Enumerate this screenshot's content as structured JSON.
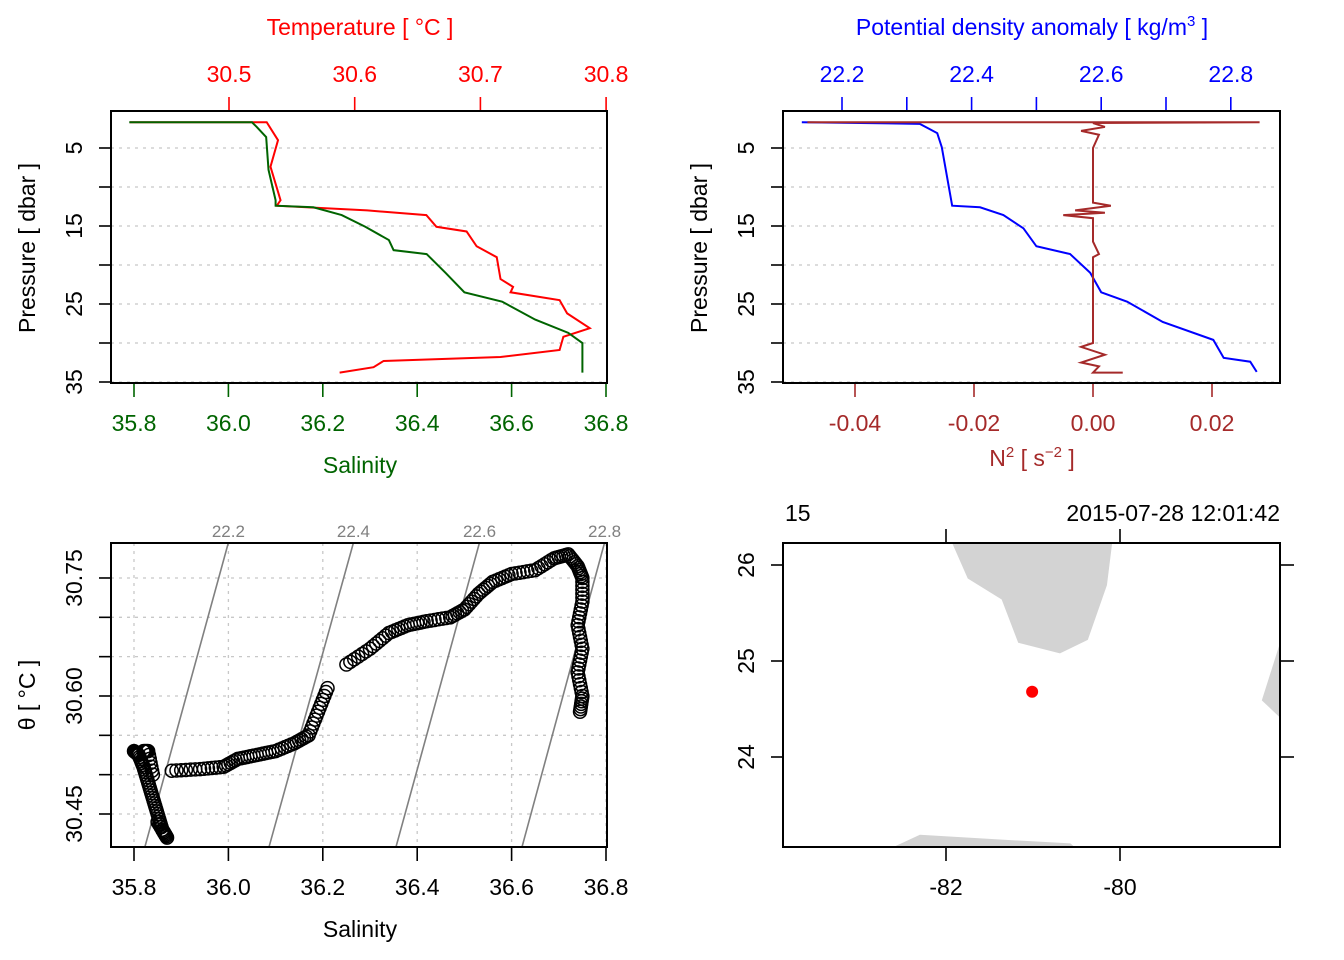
{
  "colors": {
    "salinity": "#006400",
    "temperature": "#ff0000",
    "density": "#0000ff",
    "n2": "#a52a2a",
    "land": "#d3d3d3",
    "station": "#ff0000",
    "isopycnal": "#808080"
  },
  "chart_data": [
    {
      "type": "line",
      "title": "Temperature [ °C ]",
      "xlabel": "Salinity",
      "ylabel": "Pressure [ dbar ]",
      "ylim": [
        35.2,
        0.26
      ],
      "salinity_lim": [
        35.75,
        36.8
      ],
      "temperature_lim": [
        30.406,
        30.8
      ],
      "salinity_ticks": [
        "35.8",
        "36.0",
        "36.2",
        "36.4",
        "36.6",
        "36.8"
      ],
      "temperature_ticks": [
        "30.5",
        "30.6",
        "30.7",
        "30.8"
      ],
      "pressure_ticks": [
        "5",
        "15",
        "25",
        "35"
      ],
      "grid": true,
      "series": [
        {
          "name": "Salinity",
          "points": [
            [
              35.79,
              1.7
            ],
            [
              36.05,
              1.7
            ],
            [
              36.06,
              2.3
            ],
            [
              36.08,
              3.6
            ],
            [
              36.085,
              7.8
            ],
            [
              36.1,
              11.7
            ],
            [
              36.1,
              12.4
            ],
            [
              36.18,
              12.6
            ],
            [
              36.24,
              13.6
            ],
            [
              36.29,
              15.1
            ],
            [
              36.34,
              16.8
            ],
            [
              36.35,
              18.1
            ],
            [
              36.42,
              18.6
            ],
            [
              36.46,
              21
            ],
            [
              36.5,
              23.5
            ],
            [
              36.58,
              24.7
            ],
            [
              36.65,
              27
            ],
            [
              36.72,
              28.7
            ],
            [
              36.75,
              30
            ],
            [
              36.75,
              33.8
            ]
          ]
        },
        {
          "name": "Temperature",
          "points": [
            [
              30.421,
              1.7
            ],
            [
              30.53,
              1.7
            ],
            [
              30.539,
              4
            ],
            [
              30.533,
              7.4
            ],
            [
              30.541,
              11.7
            ],
            [
              30.538,
              12.4
            ],
            [
              30.61,
              13
            ],
            [
              30.657,
              13.6
            ],
            [
              30.665,
              15.1
            ],
            [
              30.689,
              15.7
            ],
            [
              30.697,
              17.6
            ],
            [
              30.713,
              19
            ],
            [
              30.716,
              21.8
            ],
            [
              30.726,
              22.8
            ],
            [
              30.724,
              23.5
            ],
            [
              30.763,
              24.5
            ],
            [
              30.769,
              26.2
            ],
            [
              30.787,
              28.1
            ],
            [
              30.766,
              29.2
            ],
            [
              30.763,
              30.9
            ],
            [
              30.716,
              31.8
            ],
            [
              30.623,
              32.3
            ],
            [
              30.615,
              33.1
            ],
            [
              30.588,
              33.8
            ]
          ]
        }
      ]
    },
    {
      "type": "line",
      "title": "Potential density anomaly [ kg/m",
      "title_sup": "3",
      "title_end": " ]",
      "xlabel": "N",
      "xlabel_sup": "2",
      "xlabel_mid": " [ s",
      "xlabel_sup2": "−2",
      "xlabel_end": " ]",
      "ylabel": "Pressure [ dbar ]",
      "ylim": [
        35.2,
        0.26
      ],
      "density_lim": [
        22.109,
        22.876
      ],
      "n2_lim": [
        -0.0519,
        0.0315
      ],
      "density_ticks": [
        "22.2",
        "22.4",
        "22.6",
        "22.8"
      ],
      "density_minor_ticks": [
        22.3,
        22.5,
        22.7
      ],
      "n2_ticks": [
        "-0.04",
        "-0.02",
        "0.00",
        "0.02"
      ],
      "pressure_ticks": [
        "5",
        "15",
        "25",
        "35"
      ],
      "grid": true,
      "series": [
        {
          "name": "Potential density anomaly",
          "points": [
            [
              22.138,
              1.7
            ],
            [
              22.32,
              1.9
            ],
            [
              22.347,
              3.1
            ],
            [
              22.354,
              4.9
            ],
            [
              22.37,
              12.4
            ],
            [
              22.413,
              12.6
            ],
            [
              22.449,
              13.6
            ],
            [
              22.48,
              15.3
            ],
            [
              22.5,
              17.6
            ],
            [
              22.552,
              18.6
            ],
            [
              22.583,
              21
            ],
            [
              22.6,
              23.5
            ],
            [
              22.64,
              24.7
            ],
            [
              22.695,
              27.3
            ],
            [
              22.773,
              29.6
            ],
            [
              22.789,
              31.9
            ],
            [
              22.83,
              32.4
            ],
            [
              22.84,
              33.7
            ]
          ]
        },
        {
          "name": "N2",
          "points": [
            [
              -0.048,
              1.7
            ],
            [
              0.028,
              1.7
            ],
            [
              0.0,
              1.8
            ],
            [
              0.002,
              2.3
            ],
            [
              -0.002,
              2.8
            ],
            [
              0.001,
              3.3
            ],
            [
              0.0,
              5
            ],
            [
              0.0,
              12
            ],
            [
              0.003,
              12.4
            ],
            [
              -0.003,
              13
            ],
            [
              0.002,
              13.3
            ],
            [
              -0.005,
              13.6
            ],
            [
              0.0,
              14
            ],
            [
              0.0,
              17
            ],
            [
              0.001,
              18.6
            ],
            [
              0.0,
              19
            ],
            [
              0.0,
              30
            ],
            [
              -0.002,
              30.5
            ],
            [
              0.002,
              31.5
            ],
            [
              -0.002,
              32.5
            ],
            [
              0.001,
              33
            ],
            [
              0.0,
              33.8
            ],
            [
              0.005,
              33.8
            ]
          ]
        }
      ]
    },
    {
      "type": "scatter",
      "xlabel": "Salinity",
      "ylabel": "θ [ °C ]",
      "xlim": [
        35.75,
        36.8
      ],
      "ylim": [
        30.408,
        30.795
      ],
      "x_ticks": [
        "35.8",
        "36.0",
        "36.2",
        "36.4",
        "36.6",
        "36.8"
      ],
      "y_ticks": [
        "30.45",
        "30.60",
        "30.75"
      ],
      "grid": true,
      "isopycnals": [
        {
          "label": "22.2",
          "from": [
            36.0,
            30.795
          ],
          "to": [
            35.823,
            30.408
          ]
        },
        {
          "label": "22.4",
          "from": [
            36.265,
            30.795
          ],
          "to": [
            36.086,
            30.408
          ]
        },
        {
          "label": "22.6",
          "from": [
            36.532,
            30.795
          ],
          "to": [
            36.355,
            30.408
          ]
        },
        {
          "label": "22.8",
          "from": [
            36.797,
            30.795
          ],
          "to": [
            36.622,
            30.408
          ]
        }
      ],
      "points": [
        [
          35.8,
          30.53
        ],
        [
          35.81,
          30.525
        ],
        [
          35.82,
          30.51
        ],
        [
          35.83,
          30.49
        ],
        [
          35.84,
          30.47
        ],
        [
          35.85,
          30.45
        ],
        [
          35.86,
          30.43
        ],
        [
          35.87,
          30.42
        ],
        [
          35.85,
          30.44
        ],
        [
          35.84,
          30.5
        ],
        [
          35.83,
          30.53
        ],
        [
          35.82,
          30.53
        ],
        [
          35.88,
          30.505
        ],
        [
          35.94,
          30.507
        ],
        [
          35.99,
          30.51
        ],
        [
          36.02,
          30.52
        ],
        [
          36.06,
          30.525
        ],
        [
          36.1,
          30.53
        ],
        [
          36.14,
          30.54
        ],
        [
          36.17,
          30.55
        ],
        [
          36.19,
          30.58
        ],
        [
          36.21,
          30.61
        ],
        [
          36.25,
          30.64
        ],
        [
          36.3,
          30.66
        ],
        [
          36.34,
          30.68
        ],
        [
          36.38,
          30.69
        ],
        [
          36.42,
          30.695
        ],
        [
          36.47,
          30.7
        ],
        [
          36.5,
          30.71
        ],
        [
          36.53,
          30.73
        ],
        [
          36.56,
          30.745
        ],
        [
          36.6,
          30.755
        ],
        [
          36.65,
          30.76
        ],
        [
          36.69,
          30.775
        ],
        [
          36.72,
          30.78
        ],
        [
          36.74,
          30.765
        ],
        [
          36.75,
          30.75
        ],
        [
          36.75,
          30.72
        ],
        [
          36.74,
          30.69
        ],
        [
          36.75,
          30.66
        ],
        [
          36.74,
          30.63
        ],
        [
          36.75,
          30.6
        ],
        [
          36.745,
          30.58
        ]
      ]
    },
    {
      "type": "map",
      "station_label": "15",
      "datetime": "2015-07-28 12:01:42",
      "lon_lim": [
        -83.87,
        -78.16
      ],
      "lat_lim": [
        23.06,
        26.23
      ],
      "lon_ticks": [
        "-82",
        "-80"
      ],
      "lat_ticks": [
        "24",
        "25",
        "26"
      ],
      "station": [
        -81.01,
        24.68
      ],
      "land": [
        [
          [
            -81.93,
            26.23
          ],
          [
            -81.75,
            25.86
          ],
          [
            -81.36,
            25.64
          ],
          [
            -81.17,
            25.19
          ],
          [
            -80.69,
            25.08
          ],
          [
            -80.37,
            25.22
          ],
          [
            -80.15,
            25.79
          ],
          [
            -80.09,
            26.23
          ]
        ],
        [
          [
            -82.61,
            23.06
          ],
          [
            -82.3,
            23.19
          ],
          [
            -81.38,
            23.14
          ],
          [
            -80.57,
            23.1
          ],
          [
            -80.52,
            23.06
          ]
        ],
        [
          [
            -78.16,
            25.19
          ],
          [
            -78.37,
            24.59
          ],
          [
            -78.16,
            24.41
          ]
        ]
      ]
    }
  ]
}
